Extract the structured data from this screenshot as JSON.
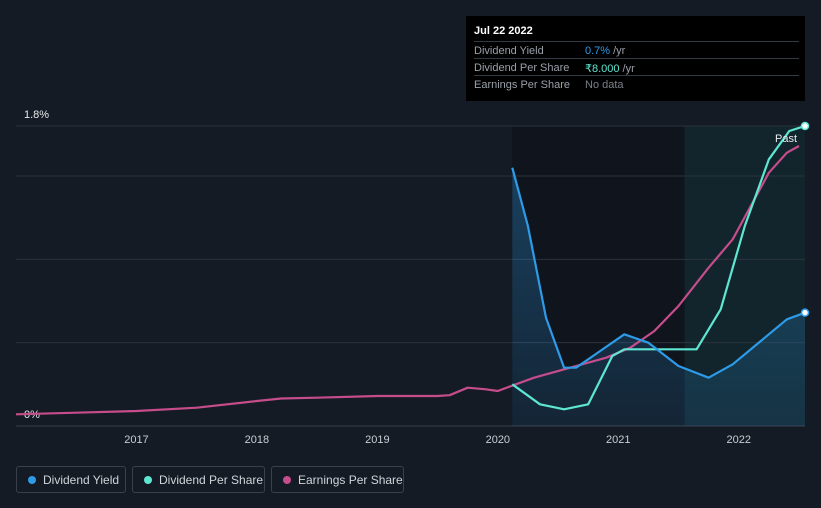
{
  "chart_data": {
    "type": "line",
    "title": "",
    "x_range": [
      2016.0,
      2022.55
    ],
    "y_axis": {
      "min_label": "0%",
      "max_label": "1.8%"
    },
    "x_ticks": [
      "2017",
      "2018",
      "2019",
      "2020",
      "2021",
      "2022"
    ],
    "past_label": "Past",
    "series": [
      {
        "name": "Dividend Yield",
        "color": "#2d9be8",
        "note": "percent of 1.8% axis",
        "points": [
          [
            2020.12,
            1.55
          ],
          [
            2020.25,
            1.2
          ],
          [
            2020.4,
            0.65
          ],
          [
            2020.55,
            0.35
          ],
          [
            2020.65,
            0.35
          ],
          [
            2020.85,
            0.45
          ],
          [
            2021.05,
            0.55
          ],
          [
            2021.25,
            0.5
          ],
          [
            2021.5,
            0.36
          ],
          [
            2021.75,
            0.29
          ],
          [
            2021.95,
            0.37
          ],
          [
            2022.2,
            0.52
          ],
          [
            2022.4,
            0.64
          ],
          [
            2022.55,
            0.68
          ]
        ]
      },
      {
        "name": "Dividend Per Share",
        "color": "#5ee6d2",
        "note": "scaled to chart, top = ₹8.000",
        "points": [
          [
            2020.12,
            0.25
          ],
          [
            2020.35,
            0.13
          ],
          [
            2020.55,
            0.1
          ],
          [
            2020.75,
            0.13
          ],
          [
            2020.95,
            0.42
          ],
          [
            2021.05,
            0.46
          ],
          [
            2021.3,
            0.46
          ],
          [
            2021.65,
            0.46
          ],
          [
            2021.85,
            0.7
          ],
          [
            2022.05,
            1.2
          ],
          [
            2022.25,
            1.6
          ],
          [
            2022.42,
            1.77
          ],
          [
            2022.55,
            1.8
          ]
        ]
      },
      {
        "name": "Earnings Per Share",
        "color": "#c64d8c",
        "note": "scaled to chart",
        "points": [
          [
            2016.0,
            0.07
          ],
          [
            2016.5,
            0.08
          ],
          [
            2017.0,
            0.09
          ],
          [
            2017.5,
            0.11
          ],
          [
            2018.0,
            0.15
          ],
          [
            2018.2,
            0.165
          ],
          [
            2018.5,
            0.17
          ],
          [
            2019.0,
            0.18
          ],
          [
            2019.5,
            0.18
          ],
          [
            2019.6,
            0.185
          ],
          [
            2019.75,
            0.23
          ],
          [
            2019.9,
            0.22
          ],
          [
            2020.0,
            0.21
          ],
          [
            2020.15,
            0.25
          ],
          [
            2020.3,
            0.29
          ],
          [
            2020.6,
            0.35
          ],
          [
            2020.9,
            0.41
          ],
          [
            2021.1,
            0.47
          ],
          [
            2021.3,
            0.57
          ],
          [
            2021.5,
            0.72
          ],
          [
            2021.75,
            0.95
          ],
          [
            2021.95,
            1.12
          ],
          [
            2022.1,
            1.32
          ],
          [
            2022.25,
            1.52
          ],
          [
            2022.4,
            1.64
          ],
          [
            2022.5,
            1.68
          ]
        ]
      }
    ]
  },
  "tooltip": {
    "date": "Jul 22 2022",
    "rows": [
      {
        "label": "Dividend Yield",
        "value": "0.7%",
        "unit": "/yr",
        "color": "#2d9be8"
      },
      {
        "label": "Dividend Per Share",
        "value": "₹8.000",
        "unit": "/yr",
        "color": "#5ee6d2"
      },
      {
        "label": "Earnings Per Share",
        "value": "No data",
        "unit": "",
        "color": "#7a808a"
      }
    ]
  },
  "legend": [
    {
      "label": "Dividend Yield",
      "color": "#2d9be8"
    },
    {
      "label": "Dividend Per Share",
      "color": "#5ee6d2"
    },
    {
      "label": "Earnings Per Share",
      "color": "#c64d8c"
    }
  ]
}
